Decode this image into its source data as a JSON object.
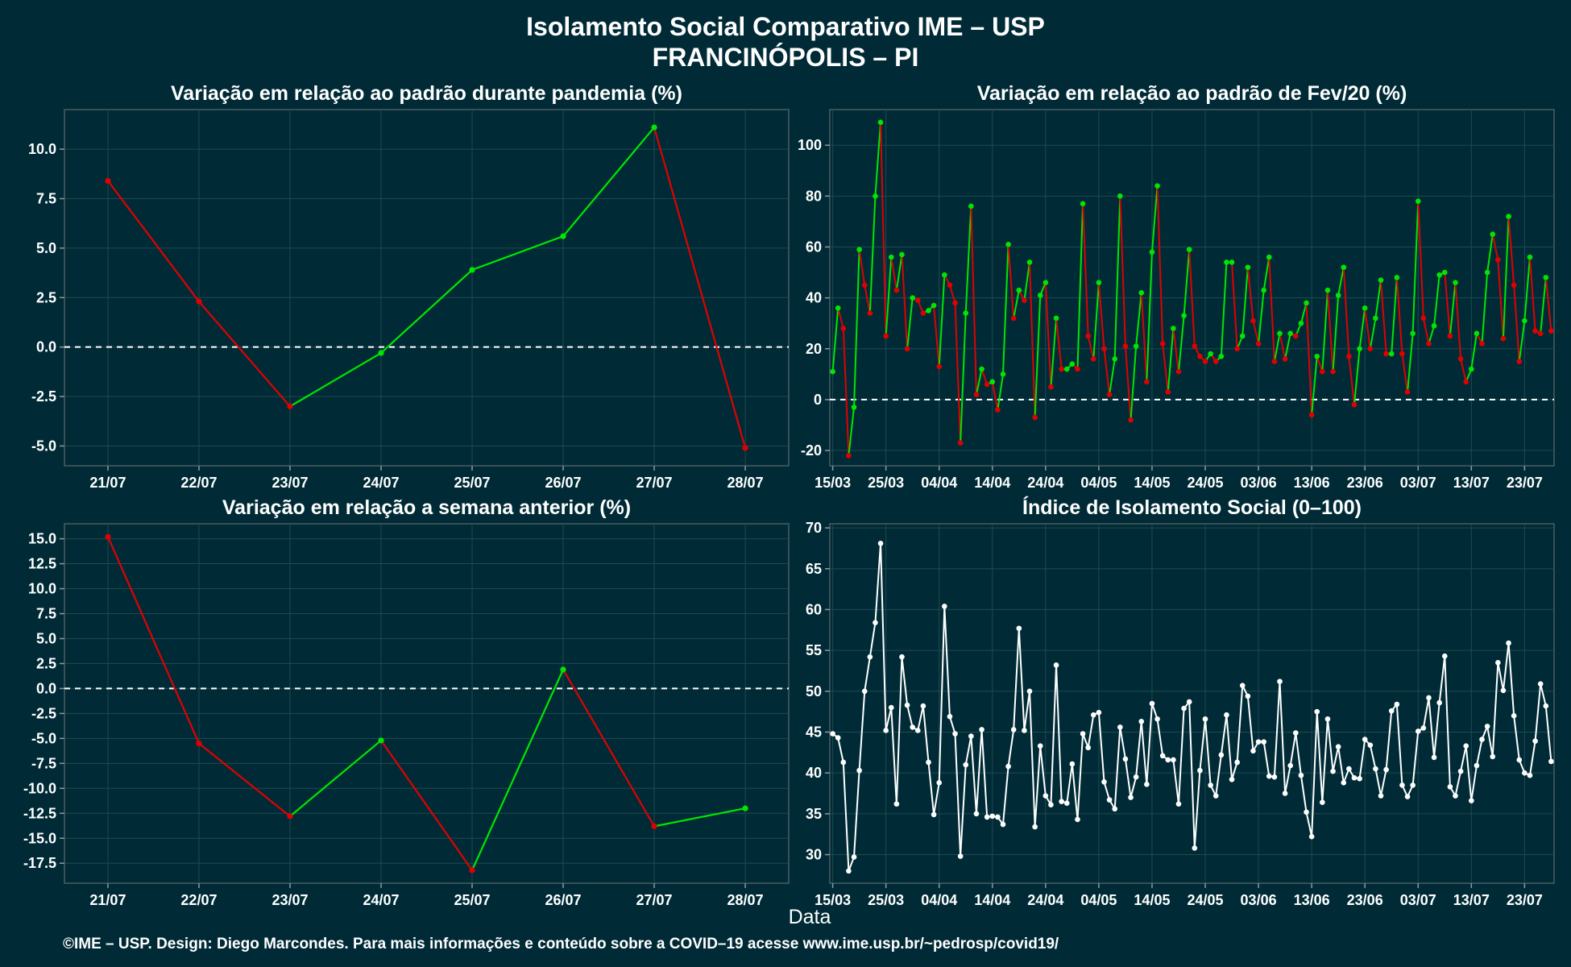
{
  "title": "Isolamento Social Comparativo IME – USP",
  "subtitle": "FRANCINÓPOLIS – PI",
  "xlabel": "Data",
  "footer": "©IME – USP. Design: Diego Marcondes. Para mais informações e conteúdo sobre a COVID–19 acesse www.ime.usp.br/~pedrosp/covid19/",
  "colors": {
    "background": "#002b36",
    "up": "#00e600",
    "down": "#e00000",
    "index": "#ffffff",
    "text": "#ffffff"
  },
  "chart_data": [
    {
      "type": "line",
      "title": "Variação em relação ao padrão durante pandemia (%)",
      "categories": [
        "21/07",
        "22/07",
        "23/07",
        "24/07",
        "25/07",
        "26/07",
        "27/07",
        "28/07"
      ],
      "values": [
        8.4,
        2.3,
        -3.0,
        -0.3,
        3.9,
        5.6,
        11.1,
        -5.1
      ],
      "ylim": [
        -6,
        12
      ],
      "yticks": [
        -5.0,
        -2.5,
        0.0,
        2.5,
        5.0,
        7.5,
        10.0
      ],
      "ytick_labels": [
        "-5.0",
        "-2.5",
        "0.0",
        "2.5",
        "5.0",
        "7.5",
        "10.0"
      ],
      "reference_line": 0,
      "grid": true
    },
    {
      "type": "line",
      "title": "Variação em relação ao padrão de Fev/20 (%)",
      "x_start": "15/03",
      "x_tick_labels": [
        "15/03",
        "25/03",
        "04/04",
        "14/04",
        "24/04",
        "04/05",
        "14/05",
        "24/05",
        "03/06",
        "13/06",
        "23/06",
        "03/07",
        "13/07",
        "23/07"
      ],
      "values": [
        11,
        36,
        28,
        -22,
        -3,
        59,
        45,
        34,
        80,
        109,
        25,
        56,
        43,
        57,
        20,
        40,
        39,
        34,
        35,
        37,
        13,
        49,
        45,
        38,
        -17,
        34,
        76,
        2,
        12,
        6,
        7,
        -4,
        10,
        61,
        32,
        43,
        39,
        54,
        -7,
        41,
        46,
        5,
        32,
        12,
        12,
        14,
        12,
        77,
        25,
        16,
        46,
        20,
        2,
        16,
        80,
        21,
        -8,
        21,
        42,
        7,
        58,
        84,
        22,
        3,
        28,
        11,
        33,
        59,
        21,
        17,
        15,
        18,
        15,
        17,
        54,
        54,
        20,
        25,
        52,
        31,
        22,
        43,
        56,
        15,
        26,
        16,
        26,
        25,
        30,
        38,
        -6,
        17,
        11,
        43,
        11,
        41,
        52,
        17,
        -2,
        20,
        36,
        20,
        32,
        47,
        18,
        18,
        48,
        18,
        3,
        26,
        78,
        32,
        22,
        29,
        49,
        50,
        25,
        46,
        16,
        7,
        12,
        26,
        22,
        50,
        65,
        55,
        24,
        72,
        45,
        15,
        31,
        56,
        27,
        26,
        48,
        27
      ],
      "ylim": [
        -26,
        114
      ],
      "yticks": [
        -20,
        0,
        20,
        40,
        60,
        80,
        100
      ],
      "ytick_labels": [
        "-20",
        "0",
        "20",
        "40",
        "60",
        "80",
        "100"
      ],
      "reference_line": 0,
      "grid": true
    },
    {
      "type": "line",
      "title": "Variação em relação a semana anterior (%)",
      "categories": [
        "21/07",
        "22/07",
        "23/07",
        "24/07",
        "25/07",
        "26/07",
        "27/07",
        "28/07"
      ],
      "values": [
        15.2,
        -5.5,
        -12.8,
        -5.2,
        -18.2,
        1.9,
        -13.8,
        -12.0
      ],
      "ylim": [
        -19.5,
        16.5
      ],
      "yticks": [
        -17.5,
        -15.0,
        -12.5,
        -10.0,
        -7.5,
        -5.0,
        -2.5,
        0.0,
        2.5,
        5.0,
        7.5,
        10.0,
        12.5,
        15.0
      ],
      "ytick_labels": [
        "-17.5",
        "-15.0",
        "-12.5",
        "-10.0",
        "-7.5",
        "-5.0",
        "-2.5",
        "0.0",
        "2.5",
        "5.0",
        "7.5",
        "10.0",
        "12.5",
        "15.0"
      ],
      "reference_line": 0,
      "grid": true
    },
    {
      "type": "line",
      "title": "Índice de Isolamento Social (0–100)",
      "x_start": "15/03",
      "x_tick_labels": [
        "15/03",
        "25/03",
        "04/04",
        "14/04",
        "24/04",
        "04/05",
        "14/05",
        "24/05",
        "03/06",
        "13/06",
        "23/06",
        "03/07",
        "13/07",
        "23/07"
      ],
      "values": [
        44.8,
        44.3,
        41.3,
        28.0,
        29.7,
        40.3,
        50.0,
        54.2,
        58.4,
        68.1,
        45.2,
        48.0,
        36.2,
        54.2,
        48.3,
        45.6,
        45.2,
        48.2,
        41.3,
        34.9,
        38.8,
        60.4,
        46.9,
        44.8,
        29.8,
        41.0,
        44.5,
        35.0,
        45.3,
        34.6,
        34.7,
        34.6,
        33.7,
        40.8,
        45.3,
        57.7,
        45.2,
        50.0,
        33.4,
        43.3,
        37.2,
        36.1,
        53.2,
        36.5,
        36.3,
        41.1,
        34.3,
        44.8,
        43.1,
        47.1,
        47.4,
        38.9,
        36.7,
        35.6,
        45.6,
        41.7,
        37.0,
        39.5,
        46.3,
        38.6,
        48.5,
        46.6,
        42.1,
        41.6,
        41.6,
        36.2,
        47.9,
        48.7,
        30.8,
        40.3,
        46.6,
        38.5,
        37.2,
        42.2,
        47.1,
        39.2,
        41.3,
        50.7,
        49.4,
        42.7,
        43.8,
        43.8,
        39.6,
        39.5,
        51.2,
        37.5,
        40.9,
        44.9,
        39.7,
        35.2,
        32.2,
        47.5,
        36.4,
        46.6,
        40.2,
        43.2,
        38.8,
        40.5,
        39.4,
        39.3,
        44.1,
        43.4,
        40.5,
        37.2,
        40.4,
        47.6,
        48.4,
        38.5,
        37.1,
        38.5,
        45.1,
        45.5,
        49.2,
        41.9,
        48.6,
        54.3,
        38.3,
        37.2,
        40.2,
        43.3,
        36.6,
        40.9,
        44.1,
        45.7,
        42.0,
        53.5,
        50.1,
        55.9,
        47.0,
        41.6,
        40.0,
        39.7,
        43.9,
        50.9,
        48.2,
        41.4
      ],
      "ylim": [
        26.5,
        70.5
      ],
      "yticks": [
        30,
        35,
        40,
        45,
        50,
        55,
        60,
        65,
        70
      ],
      "ytick_labels": [
        "30",
        "35",
        "40",
        "45",
        "50",
        "55",
        "60",
        "65",
        "70"
      ],
      "grid": true
    }
  ]
}
